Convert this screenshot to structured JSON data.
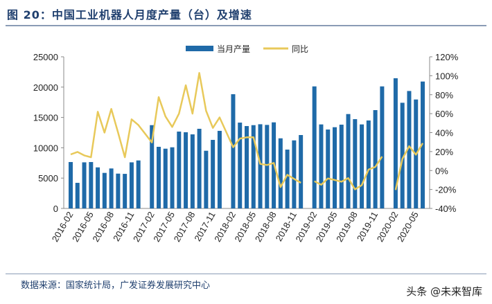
{
  "title": "图 20：中国工业机器人月度产量（台）及增速",
  "source": "数据来源：国家统计局，广发证券发展研究中心",
  "watermark": "头条 @未来智库",
  "chart_data": {
    "type": "bar+line",
    "categories": [
      "2016-02",
      "2016-03",
      "2016-04",
      "2016-05",
      "2016-06",
      "2016-07",
      "2016-08",
      "2016-09",
      "2016-10",
      "2016-11",
      "2016-12",
      "2017-01",
      "2017-02",
      "2017-03",
      "2017-04",
      "2017-05",
      "2017-06",
      "2017-07",
      "2017-08",
      "2017-09",
      "2017-10",
      "2017-11",
      "2017-12",
      "2018-01",
      "2018-02",
      "2018-03",
      "2018-04",
      "2018-05",
      "2018-06",
      "2018-07",
      "2018-08",
      "2018-09",
      "2018-10",
      "2018-11",
      "2018-12",
      "2019-01",
      "2019-02",
      "2019-03",
      "2019-04",
      "2019-05",
      "2019-06",
      "2019-07",
      "2019-08",
      "2019-09",
      "2019-10",
      "2019-11",
      "2019-12",
      "2020-01",
      "2020-02",
      "2020-03",
      "2020-04",
      "2020-05",
      "2020-06"
    ],
    "x_tick_labels": [
      "2016-02",
      "2016-05",
      "2016-08",
      "2016-11",
      "2017-02",
      "2017-05",
      "2017-08",
      "2017-11",
      "2018-02",
      "2018-05",
      "2018-08",
      "2018-11",
      "2019-02",
      "2019-05",
      "2019-08",
      "2019-11",
      "2020-02",
      "2020-05"
    ],
    "series": [
      {
        "name": "当月产量",
        "type": "bar",
        "axis": "left",
        "color": "#1f6aa8",
        "values": [
          7650,
          4220,
          7600,
          7650,
          6770,
          5860,
          6590,
          5740,
          5700,
          7600,
          7910,
          null,
          13730,
          10160,
          9850,
          10080,
          12670,
          12560,
          12210,
          13130,
          9510,
          11300,
          12790,
          null,
          18830,
          14150,
          13580,
          13730,
          13880,
          13770,
          14190,
          11560,
          9700,
          11220,
          12100,
          null,
          20120,
          13850,
          13010,
          13390,
          13810,
          15560,
          14720,
          13850,
          14500,
          16210,
          20120,
          null,
          21460,
          17420,
          19360,
          17960,
          20920
        ]
      },
      {
        "name": "同比",
        "type": "line",
        "axis": "right",
        "unit": "%",
        "color": "#e8c95a",
        "values": [
          17,
          19.6,
          16,
          14,
          62,
          40,
          65,
          40,
          14,
          54,
          48,
          null,
          29.6,
          77.5,
          57,
          46,
          60,
          90,
          60,
          103,
          63,
          45,
          56,
          null,
          24.6,
          33.7,
          35,
          35,
          7,
          5.8,
          8,
          -17.4,
          -4.5,
          -8.8,
          -13,
          null,
          -11.3,
          -15,
          -8.4,
          -10,
          -11.8,
          -8,
          -19.8,
          -15.4,
          1,
          3.8,
          14.7,
          null,
          -20.5,
          12.3,
          25.7,
          16.7,
          28.8
        ]
      }
    ],
    "left_axis": {
      "min": 0,
      "max": 25000,
      "ticks": [
        0,
        5000,
        10000,
        15000,
        20000,
        25000
      ]
    },
    "right_axis": {
      "min": -40,
      "max": 120,
      "ticks": [
        "-40%",
        "-20%",
        "0%",
        "20%",
        "40%",
        "60%",
        "80%",
        "100%",
        "120%"
      ]
    },
    "legend_position": "top",
    "grid": false
  }
}
